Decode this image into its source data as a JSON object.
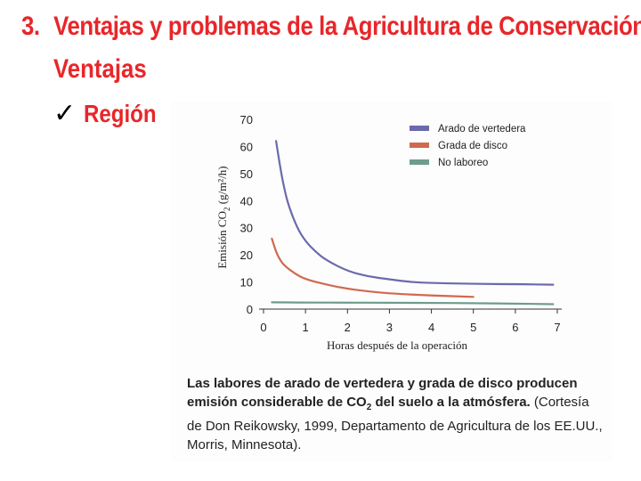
{
  "slide": {
    "number": "3.",
    "title": "Ventajas y problemas de la Agricultura de Conservación",
    "subtitle": "Ventajas",
    "bullet_check": "✓",
    "bullet": "Región"
  },
  "caption": {
    "bold_part1": "Las labores de arado de vertedera y grada de disco producen emisión considerable de CO",
    "bold_sub": "2",
    "bold_part2": " del suelo a la atmósfera.",
    "normal": " (Cortesía de Don Reikowsky, 1999, Departamento de Agricultura de los EE.UU., Morris, Minnesota)."
  },
  "chart_data": {
    "type": "line",
    "xlabel": "Horas después de la operación",
    "ylabel_main": "Emisión CO",
    "ylabel_sub": "2",
    "ylabel_unit": " (g/m²/h)",
    "xlim": [
      0,
      7
    ],
    "ylim": [
      0,
      70
    ],
    "xticks": [
      0,
      1,
      2,
      3,
      4,
      5,
      6,
      7
    ],
    "yticks": [
      0,
      10,
      20,
      30,
      40,
      50,
      60,
      70
    ],
    "grid": false,
    "legend": "top-right",
    "series": [
      {
        "name": "Arado de vertedera",
        "color": "#6b6aab",
        "x": [
          0.3,
          0.4,
          0.5,
          0.6,
          0.8,
          1.0,
          1.25,
          1.5,
          2.0,
          2.5,
          3.0,
          3.5,
          4.0,
          5.0,
          6.0,
          6.9
        ],
        "y": [
          62,
          52,
          44,
          38,
          30,
          25,
          21,
          18,
          14,
          12,
          11,
          10,
          9.6,
          9.3,
          9.2,
          9.0
        ]
      },
      {
        "name": "Grada de disco",
        "color": "#cf6a4f",
        "x": [
          0.2,
          0.3,
          0.4,
          0.5,
          0.75,
          1.0,
          1.5,
          2.0,
          2.5,
          3.0,
          4.0,
          5.0
        ],
        "y": [
          26,
          21,
          18,
          16,
          13,
          11,
          9,
          7.5,
          6.5,
          5.8,
          5.0,
          4.5
        ]
      },
      {
        "name": "No laboreo",
        "color": "#6d9c8c",
        "x": [
          0.2,
          1,
          2,
          3,
          4,
          5,
          6,
          6.9
        ],
        "y": [
          2.5,
          2.4,
          2.4,
          2.3,
          2.3,
          2.2,
          2.0,
          1.8
        ]
      }
    ]
  }
}
